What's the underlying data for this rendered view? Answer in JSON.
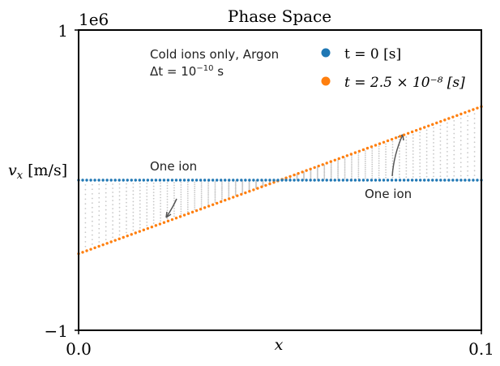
{
  "chart_data": {
    "type": "scatter",
    "title": "Phase Space",
    "xlabel": "x",
    "ylabel": "v_x [m/s]",
    "xlim": [
      0.0,
      0.1
    ],
    "ylim": [
      -1000000,
      1000000
    ],
    "xticks": [
      "0.0",
      "0.1"
    ],
    "yticks": [
      "1",
      "−1"
    ],
    "y_offset_label": "1e6",
    "grid": false,
    "legend_position": "top-right",
    "series": [
      {
        "name": "t = 0 [s]",
        "color": "#1f77b4",
        "x_start": 0.0,
        "x_end": 0.1,
        "y_start": 0,
        "y_end": 0,
        "points": 100
      },
      {
        "name": "t = 2.5 × 10⁻⁸ [s]",
        "color": "#ff7f0e",
        "x_start": 0.0,
        "x_end": 0.1,
        "y_start": -490000,
        "y_end": 490000,
        "points": 100
      }
    ],
    "background_traces": {
      "color": "#c8c8c8",
      "count": 14,
      "final_slope_fraction": 1.0
    },
    "annotations": {
      "inset_line1": "Cold ions only, Argon",
      "inset_line2_prefix": "Δt = 10",
      "inset_line2_exp": "−10",
      "inset_line2_suffix": " s",
      "one_ion_left": "One ion",
      "one_ion_right": "One ion"
    }
  }
}
